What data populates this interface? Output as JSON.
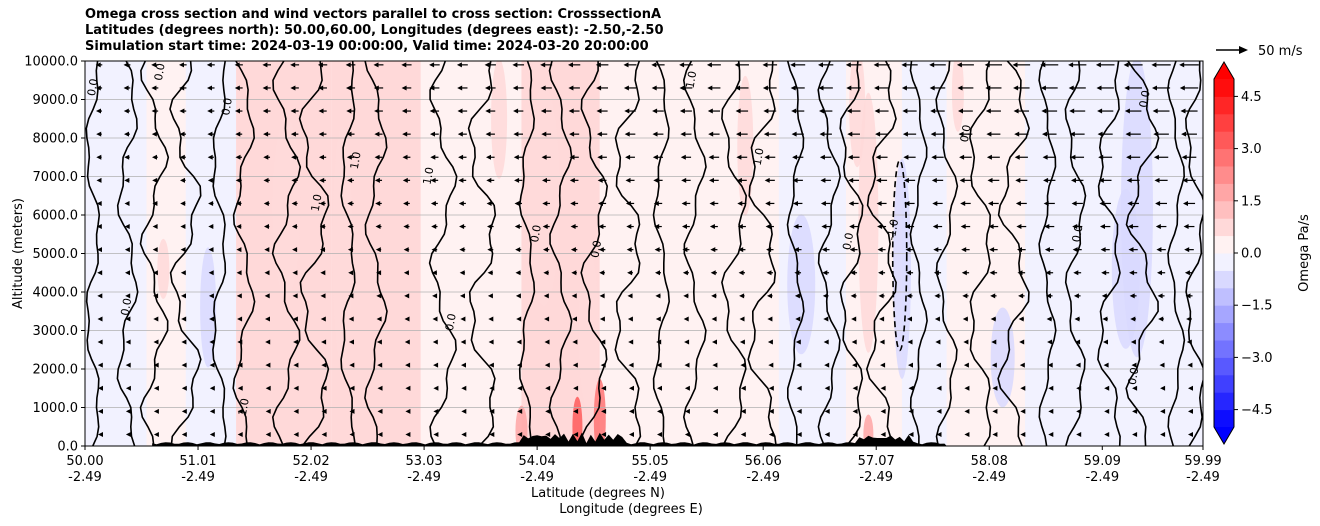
{
  "chart_data": {
    "type": "heatmap",
    "title_lines": [
      "Omega cross section and wind vectors parallel to cross section: CrosssectionA",
      "Latitudes (degrees north): 50.00,60.00, Longitudes (degrees east): -2.50,-2.50",
      "Simulation start time: 2024-03-19 00:00:00, Valid time: 2024-03-20 20:00:00"
    ],
    "ylabel": "Altitude (meters)",
    "xlabel_lat": "Latitude (degrees N)",
    "xlabel_lon": "Longitude (degrees E)",
    "ylim": [
      0,
      10000
    ],
    "y_ticks": [
      "0.0",
      "1000.0",
      "2000.0",
      "3000.0",
      "4000.0",
      "5000.0",
      "6000.0",
      "7000.0",
      "8000.0",
      "9000.0",
      "10000.0"
    ],
    "x_range": [
      50.0,
      59.99
    ],
    "x_ticks": [
      {
        "lat": "50.00",
        "lon": "-2.49",
        "value": 50.0
      },
      {
        "lat": "51.01",
        "lon": "-2.49",
        "value": 51.01
      },
      {
        "lat": "52.02",
        "lon": "-2.49",
        "value": 52.02
      },
      {
        "lat": "53.03",
        "lon": "-2.49",
        "value": 53.03
      },
      {
        "lat": "54.04",
        "lon": "-2.49",
        "value": 54.04
      },
      {
        "lat": "55.05",
        "lon": "-2.49",
        "value": 55.05
      },
      {
        "lat": "56.06",
        "lon": "-2.49",
        "value": 56.06
      },
      {
        "lat": "57.07",
        "lon": "-2.49",
        "value": 57.07
      },
      {
        "lat": "58.08",
        "lon": "-2.49",
        "value": 58.08
      },
      {
        "lat": "59.09",
        "lon": "-2.49",
        "value": 59.09
      },
      {
        "lat": "59.99",
        "lon": "-2.49",
        "value": 59.99
      }
    ],
    "colorbar": {
      "label": "Omega Pa/s",
      "range": [
        -5,
        5
      ],
      "ticks": [
        "4.5",
        "3.0",
        "1.5",
        "0.0",
        "−1.5",
        "−3.0",
        "−4.5"
      ],
      "tick_values": [
        4.5,
        3.0,
        1.5,
        0.0,
        -1.5,
        -3.0,
        -4.5
      ],
      "levels": 20,
      "extend": "both"
    },
    "quiver_key": {
      "label": "50 m/s",
      "value": 50
    },
    "contour_labels": [
      "0.0",
      "1.0",
      "-1.0"
    ],
    "wind_direction": "southward (negative along cross section)",
    "omega_bands": [
      {
        "x0": 50.0,
        "x1": 50.55,
        "omega": -0.2
      },
      {
        "x0": 50.55,
        "x1": 50.9,
        "omega": 0.3
      },
      {
        "x0": 50.9,
        "x1": 51.35,
        "omega": -0.25
      },
      {
        "x0": 51.35,
        "x1": 52.2,
        "omega": 0.7
      },
      {
        "x0": 52.2,
        "x1": 53.0,
        "omega": 0.5
      },
      {
        "x0": 53.0,
        "x1": 53.9,
        "omega": 0.2
      },
      {
        "x0": 53.9,
        "x1": 54.6,
        "omega": 0.6
      },
      {
        "x0": 54.6,
        "x1": 55.5,
        "omega": 0.25
      },
      {
        "x0": 55.5,
        "x1": 56.2,
        "omega": 0.3
      },
      {
        "x0": 56.2,
        "x1": 56.8,
        "omega": -0.4
      },
      {
        "x0": 56.8,
        "x1": 57.3,
        "omega": 0.4
      },
      {
        "x0": 57.3,
        "x1": 57.7,
        "omega": -0.5
      },
      {
        "x0": 57.7,
        "x1": 58.4,
        "omega": 0.2
      },
      {
        "x0": 58.4,
        "x1": 59.2,
        "omega": -0.2
      },
      {
        "x0": 59.2,
        "x1": 59.99,
        "omega": -0.35
      }
    ]
  }
}
